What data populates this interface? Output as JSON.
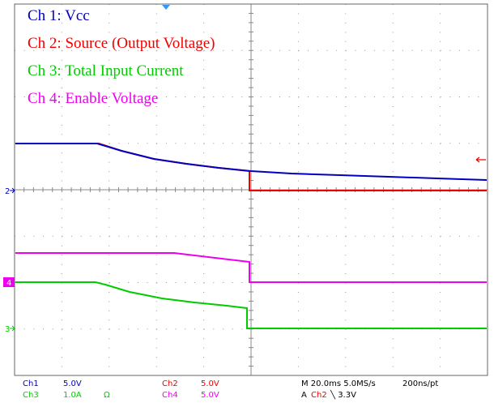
{
  "legend": [
    {
      "text": "Ch 1:  Vcc"
    },
    {
      "text": "Ch 2:  Source (Output Voltage)"
    },
    {
      "text": "Ch 3:  Total Input Current"
    },
    {
      "text": "Ch 4:  Enable Voltage"
    }
  ],
  "markers": {
    "ch2": "2",
    "ch4": "4",
    "ch3": "3"
  },
  "readout": {
    "ch1": {
      "name": "Ch1",
      "scale": "5.0V"
    },
    "ch2": {
      "name": "Ch2",
      "scale": "5.0V"
    },
    "ch3": {
      "name": "Ch3",
      "scale": "1.0A",
      "coupling": "Ω"
    },
    "ch4": {
      "name": "Ch4",
      "scale": "5.0V"
    },
    "timebase": "M 20.0ms 5.0MS/s",
    "record": "200ns/pt",
    "trigger": {
      "prefix": "A",
      "source": "Ch2",
      "level": "╲ 3.3V"
    }
  }
}
